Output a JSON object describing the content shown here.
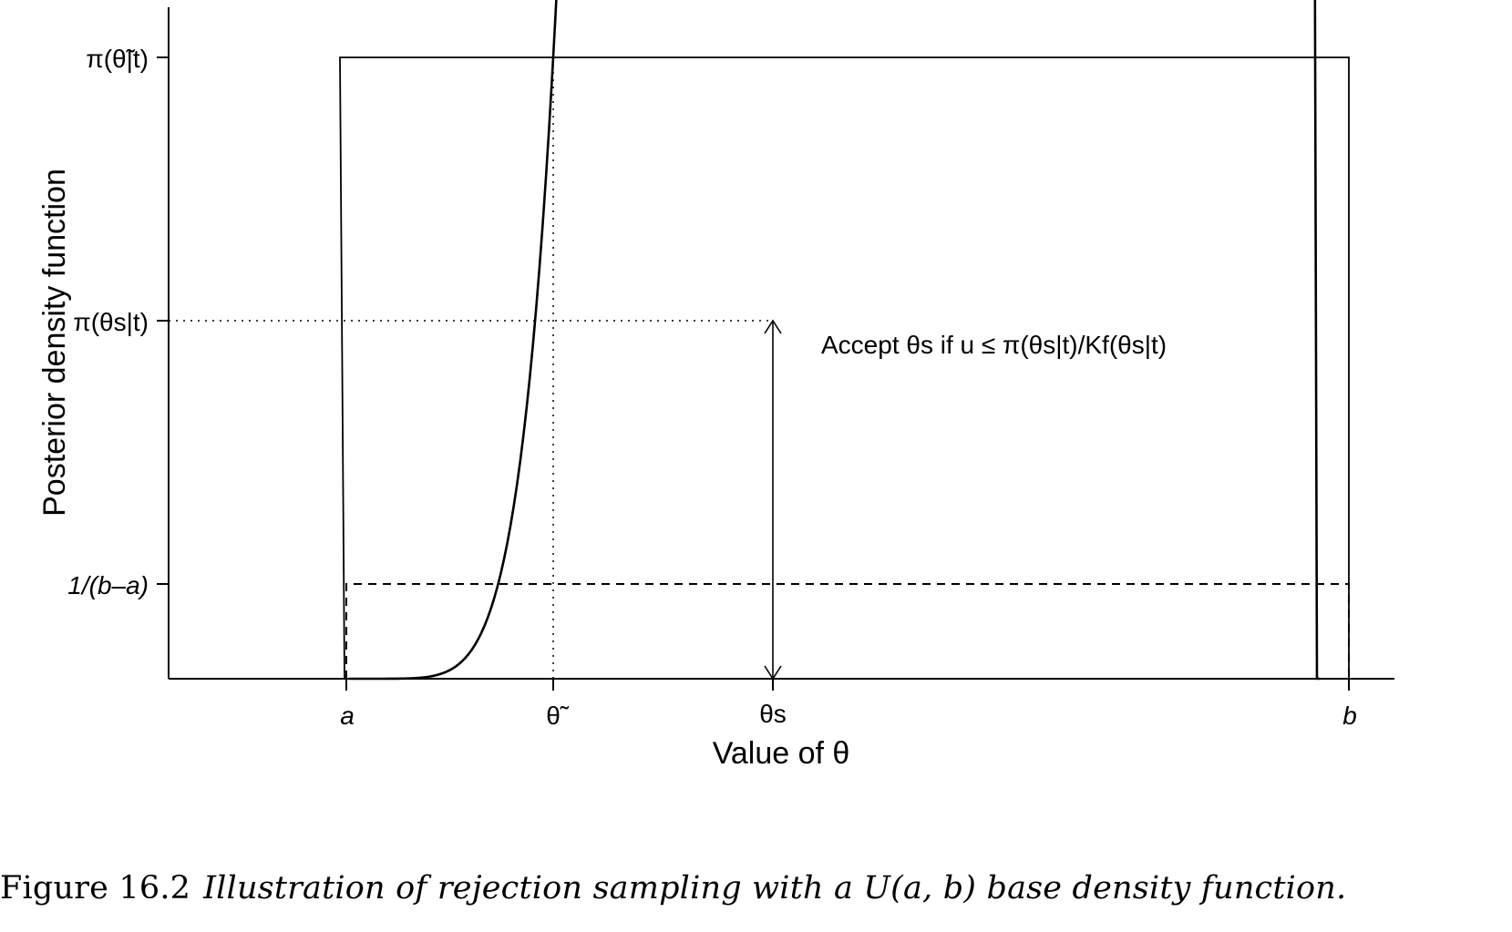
{
  "figure": {
    "ylabel": "Posterior density function",
    "xlabel": "Value of θ",
    "y_ticks": {
      "max": "π(θ̃|t)",
      "theta_s": "π(θs|t)",
      "uniform": "1/(b–a)"
    },
    "x_ticks": {
      "a": "a",
      "theta_tilde": "θ̃",
      "theta_s": "θs",
      "b": "b"
    },
    "annotation": "Accept θs if u ≤ π(θs|t)/Kf(θs|t)"
  },
  "caption": {
    "label": "Figure 16.2",
    "text": "Illustration of rejection sampling with a U(a, b) base density function."
  }
}
